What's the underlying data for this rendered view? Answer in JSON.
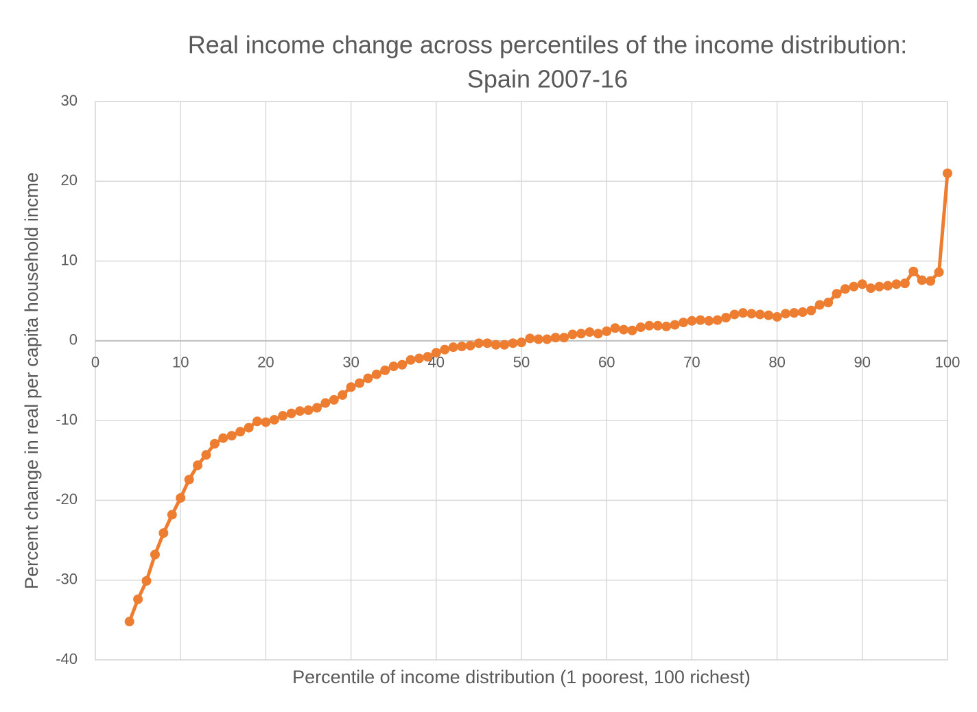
{
  "chart_data": {
    "type": "line",
    "title": "Real income change across percentiles of the income distribution:",
    "subtitle": "Spain 2007-16",
    "x_label": "Percentile of income distribution (1 poorest, 100 richest)",
    "y_label": "Percent change in real per capita household incme",
    "x": [
      4,
      5,
      6,
      7,
      8,
      9,
      10,
      11,
      12,
      13,
      14,
      15,
      16,
      17,
      18,
      19,
      20,
      21,
      22,
      23,
      24,
      25,
      26,
      27,
      28,
      29,
      30,
      31,
      32,
      33,
      34,
      35,
      36,
      37,
      38,
      39,
      40,
      41,
      42,
      43,
      44,
      45,
      46,
      47,
      48,
      49,
      50,
      51,
      52,
      53,
      54,
      55,
      56,
      57,
      58,
      59,
      60,
      61,
      62,
      63,
      64,
      65,
      66,
      67,
      68,
      69,
      70,
      71,
      72,
      73,
      74,
      75,
      76,
      77,
      78,
      79,
      80,
      81,
      82,
      83,
      84,
      85,
      86,
      87,
      88,
      89,
      90,
      91,
      92,
      93,
      94,
      95,
      96,
      97,
      98,
      99,
      100
    ],
    "series": [
      {
        "name": "Real income change",
        "color": "#ed7d31",
        "values": [
          -35.2,
          -32.4,
          -30.1,
          -26.8,
          -24.1,
          -21.8,
          -19.7,
          -17.4,
          -15.6,
          -14.3,
          -12.9,
          -12.2,
          -11.9,
          -11.4,
          -10.9,
          -10.1,
          -10.2,
          -9.9,
          -9.4,
          -9.1,
          -8.8,
          -8.7,
          -8.4,
          -7.8,
          -7.4,
          -6.8,
          -5.8,
          -5.3,
          -4.7,
          -4.2,
          -3.7,
          -3.2,
          -3.0,
          -2.4,
          -2.2,
          -2.0,
          -1.5,
          -1.1,
          -0.8,
          -0.7,
          -0.6,
          -0.3,
          -0.3,
          -0.5,
          -0.5,
          -0.3,
          -0.2,
          0.3,
          0.2,
          0.2,
          0.4,
          0.4,
          0.8,
          0.9,
          1.1,
          0.9,
          1.2,
          1.6,
          1.4,
          1.3,
          1.7,
          1.9,
          1.9,
          1.8,
          2.0,
          2.3,
          2.5,
          2.6,
          2.5,
          2.6,
          2.9,
          3.3,
          3.5,
          3.4,
          3.3,
          3.2,
          3.0,
          3.4,
          3.5,
          3.6,
          3.8,
          4.5,
          4.8,
          5.9,
          6.5,
          6.8,
          7.1,
          6.6,
          6.8,
          6.9,
          7.1,
          7.2,
          8.7,
          7.6,
          7.5,
          8.6,
          21.0
        ]
      }
    ],
    "xlim": [
      0,
      100
    ],
    "xticks": [
      0,
      10,
      20,
      30,
      40,
      50,
      60,
      70,
      80,
      90,
      100
    ],
    "ylim": [
      -40,
      30
    ],
    "yticks": [
      -40,
      -30,
      -20,
      -10,
      0,
      10,
      20,
      30
    ],
    "grid": true
  }
}
